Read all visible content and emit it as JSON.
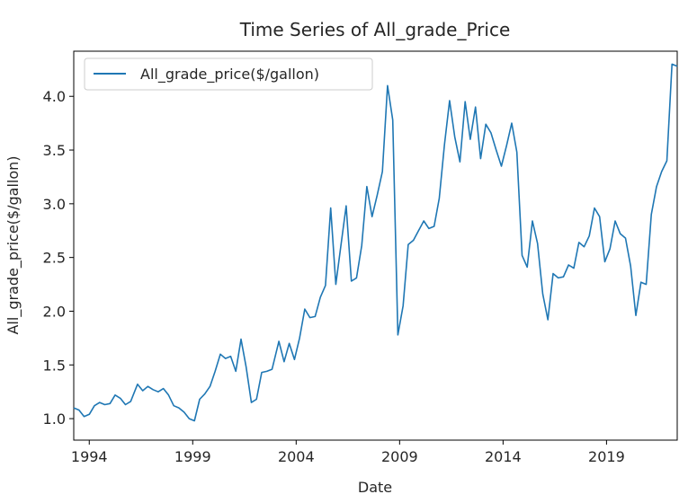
{
  "chart_data": {
    "type": "line",
    "title": "Time Series of All_grade_Price",
    "xlabel": "Date",
    "ylabel": "All_grade_price($/gallon)",
    "xlim": [
      "1993-04",
      "2022-06"
    ],
    "ylim": [
      0.8,
      4.42
    ],
    "x_ticks": [
      "1994",
      "1999",
      "2004",
      "2009",
      "2014",
      "2019"
    ],
    "y_ticks": [
      "1.0",
      "1.5",
      "2.0",
      "2.5",
      "3.0",
      "3.5",
      "4.0"
    ],
    "grid": false,
    "legend_position": "top-left",
    "color": "#1f77b4",
    "series": [
      {
        "name": "All_grade_price($/gallon)",
        "x": [
          "1993-04",
          "1993-07",
          "1993-10",
          "1994-01",
          "1994-04",
          "1994-07",
          "1994-10",
          "1995-01",
          "1995-04",
          "1995-07",
          "1995-10",
          "1996-01",
          "1996-05",
          "1996-08",
          "1996-11",
          "1997-02",
          "1997-05",
          "1997-08",
          "1997-11",
          "1998-02",
          "1998-05",
          "1998-08",
          "1998-11",
          "1999-02",
          "1999-05",
          "1999-08",
          "1999-11",
          "2000-02",
          "2000-05",
          "2000-08",
          "2000-11",
          "2001-02",
          "2001-05",
          "2001-08",
          "2001-11",
          "2002-02",
          "2002-05",
          "2002-08",
          "2002-11",
          "2003-03",
          "2003-06",
          "2003-09",
          "2003-12",
          "2004-03",
          "2004-06",
          "2004-09",
          "2004-12",
          "2005-03",
          "2005-06",
          "2005-09",
          "2005-12",
          "2006-03",
          "2006-06",
          "2006-09",
          "2006-12",
          "2007-03",
          "2007-06",
          "2007-09",
          "2007-12",
          "2008-03",
          "2008-06",
          "2008-09",
          "2008-12",
          "2009-03",
          "2009-06",
          "2009-09",
          "2009-12",
          "2010-03",
          "2010-06",
          "2010-09",
          "2010-12",
          "2011-03",
          "2011-06",
          "2011-09",
          "2011-12",
          "2012-03",
          "2012-06",
          "2012-09",
          "2012-12",
          "2013-03",
          "2013-06",
          "2013-09",
          "2013-12",
          "2014-03",
          "2014-06",
          "2014-09",
          "2014-12",
          "2015-03",
          "2015-06",
          "2015-09",
          "2015-12",
          "2016-03",
          "2016-06",
          "2016-09",
          "2016-12",
          "2017-03",
          "2017-06",
          "2017-09",
          "2017-12",
          "2018-03",
          "2018-06",
          "2018-09",
          "2018-12",
          "2019-03",
          "2019-06",
          "2019-09",
          "2019-12",
          "2020-03",
          "2020-06",
          "2020-09",
          "2020-12",
          "2021-03",
          "2021-06",
          "2021-09",
          "2021-12",
          "2022-03",
          "2022-06"
        ],
        "values": [
          1.1,
          1.08,
          1.02,
          1.04,
          1.12,
          1.15,
          1.13,
          1.14,
          1.22,
          1.19,
          1.13,
          1.16,
          1.32,
          1.26,
          1.3,
          1.27,
          1.25,
          1.28,
          1.22,
          1.12,
          1.1,
          1.06,
          1.0,
          0.98,
          1.18,
          1.23,
          1.3,
          1.44,
          1.6,
          1.56,
          1.58,
          1.44,
          1.74,
          1.48,
          1.15,
          1.18,
          1.43,
          1.44,
          1.46,
          1.72,
          1.53,
          1.7,
          1.55,
          1.75,
          2.02,
          1.94,
          1.95,
          2.13,
          2.24,
          2.96,
          2.25,
          2.62,
          2.98,
          2.28,
          2.31,
          2.61,
          3.16,
          2.88,
          3.08,
          3.3,
          4.1,
          3.78,
          1.78,
          2.05,
          2.62,
          2.66,
          2.75,
          2.84,
          2.77,
          2.79,
          3.05,
          3.55,
          3.96,
          3.62,
          3.39,
          3.95,
          3.6,
          3.9,
          3.42,
          3.74,
          3.66,
          3.5,
          3.35,
          3.54,
          3.75,
          3.48,
          2.52,
          2.41,
          2.84,
          2.63,
          2.16,
          1.92,
          2.35,
          2.31,
          2.32,
          2.43,
          2.4,
          2.64,
          2.6,
          2.7,
          2.96,
          2.88,
          2.46,
          2.58,
          2.84,
          2.72,
          2.68,
          2.42,
          1.96,
          2.27,
          2.25,
          2.9,
          3.16,
          3.3,
          3.4,
          4.3,
          4.28
        ]
      }
    ]
  }
}
